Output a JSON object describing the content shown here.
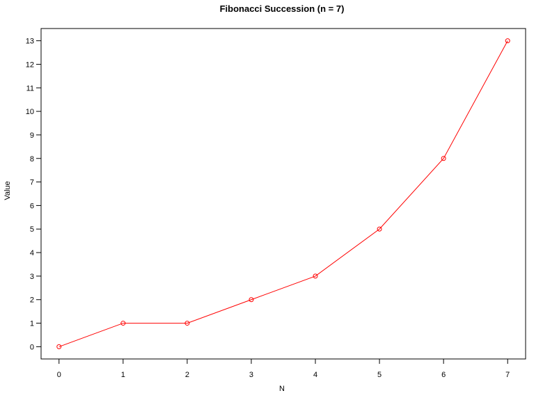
{
  "chart_data": {
    "type": "line",
    "title": "Fibonacci Succession (n = 7)",
    "xlabel": "N",
    "ylabel": "Value",
    "x": [
      0,
      1,
      2,
      3,
      4,
      5,
      6,
      7
    ],
    "series": [
      {
        "values": [
          0,
          1,
          1,
          2,
          3,
          5,
          8,
          13
        ],
        "color": "#ff0000",
        "marker": "open-circle"
      }
    ],
    "xlim": [
      -0.28,
      7.28
    ],
    "ylim": [
      -0.52,
      13.52
    ],
    "xticks": [
      0,
      1,
      2,
      3,
      4,
      5,
      6,
      7
    ],
    "yticks": [
      0,
      1,
      2,
      3,
      4,
      5,
      6,
      7,
      8,
      9,
      10,
      11,
      12,
      13
    ],
    "grid": false,
    "legend": "none"
  }
}
